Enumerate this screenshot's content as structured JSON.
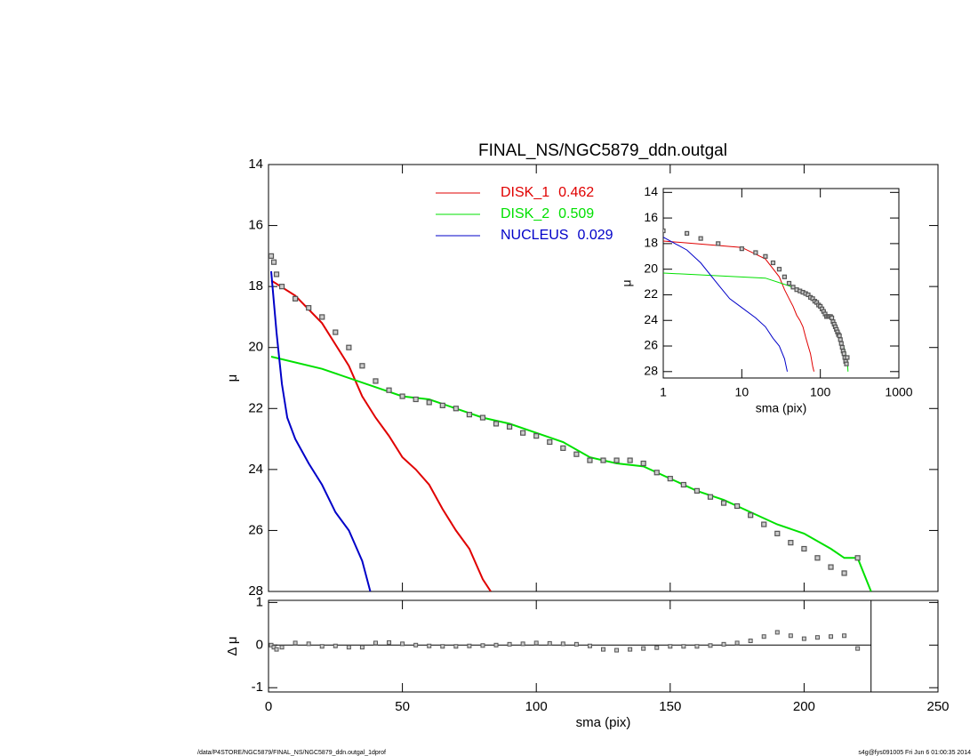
{
  "chart_data": [
    {
      "type": "line",
      "title": "FINAL_NS/NGC5879_ddn.outgal",
      "ylabel": "μ",
      "xlim": [
        0,
        250
      ],
      "xticks": [
        0,
        50,
        100,
        150,
        200,
        250
      ],
      "ylim": [
        14,
        28
      ],
      "yticks": [
        14,
        16,
        18,
        20,
        22,
        24,
        26,
        28
      ],
      "y_inverted": true,
      "series": [
        {
          "name": "DISK_1",
          "fraction": 0.462,
          "color": "#e00000",
          "x": [
            1,
            10,
            20,
            30,
            35,
            40,
            45,
            50,
            55,
            60,
            65,
            70,
            75,
            80,
            83
          ],
          "values": [
            17.8,
            18.3,
            19.2,
            20.6,
            21.6,
            22.3,
            22.9,
            23.6,
            24.0,
            24.5,
            25.3,
            26.0,
            26.6,
            27.6,
            28.0
          ]
        },
        {
          "name": "DISK_2",
          "fraction": 0.509,
          "color": "#00e000",
          "x": [
            1,
            20,
            40,
            50,
            60,
            70,
            80,
            90,
            100,
            110,
            120,
            125,
            130,
            140,
            150,
            160,
            170,
            180,
            190,
            200,
            210,
            215,
            220,
            225
          ],
          "values": [
            20.3,
            20.7,
            21.3,
            21.6,
            21.7,
            22.0,
            22.3,
            22.5,
            22.8,
            23.1,
            23.6,
            23.7,
            23.8,
            23.9,
            24.3,
            24.7,
            25.0,
            25.4,
            25.8,
            26.1,
            26.6,
            26.9,
            26.9,
            28.0
          ]
        },
        {
          "name": "NUCLEUS",
          "fraction": 0.029,
          "color": "#0000c8",
          "x": [
            1,
            2,
            3,
            5,
            7,
            10,
            15,
            20,
            25,
            30,
            35,
            38
          ],
          "values": [
            17.5,
            18.5,
            19.5,
            21.2,
            22.3,
            23.0,
            23.8,
            24.5,
            25.4,
            26.0,
            27.0,
            28.0
          ]
        }
      ],
      "data": {
        "color": "#555555",
        "x": [
          1,
          2,
          3,
          5,
          10,
          15,
          20,
          25,
          30,
          35,
          40,
          45,
          50,
          55,
          60,
          65,
          70,
          75,
          80,
          85,
          90,
          95,
          100,
          105,
          110,
          115,
          120,
          125,
          130,
          135,
          140,
          145,
          150,
          155,
          160,
          165,
          170,
          175,
          180,
          185,
          190,
          195,
          200,
          205,
          210,
          215,
          220
        ],
        "values": [
          17.0,
          17.2,
          17.6,
          18.0,
          18.4,
          18.7,
          19.0,
          19.5,
          20.0,
          20.6,
          21.1,
          21.4,
          21.6,
          21.7,
          21.8,
          21.9,
          22.0,
          22.2,
          22.3,
          22.5,
          22.6,
          22.8,
          22.9,
          23.1,
          23.3,
          23.5,
          23.7,
          23.7,
          23.7,
          23.7,
          23.8,
          24.1,
          24.3,
          24.5,
          24.7,
          24.9,
          25.1,
          25.2,
          25.5,
          25.8,
          26.1,
          26.4,
          26.6,
          26.9,
          27.2,
          27.4,
          26.9
        ]
      }
    },
    {
      "type": "scatter",
      "xlabel": "sma (pix)",
      "ylabel": "Δ μ",
      "xlim": [
        0,
        250
      ],
      "xticks": [
        0,
        50,
        100,
        150,
        200,
        250
      ],
      "ylim": [
        -1.1,
        1.05
      ],
      "yticks": [
        1,
        0,
        -1
      ],
      "vline": 225,
      "values": [
        0.0,
        -0.05,
        -0.1,
        -0.05,
        0.05,
        0.03,
        -0.03,
        -0.02,
        -0.05,
        -0.05,
        0.05,
        0.06,
        0.03,
        0.0,
        -0.02,
        -0.03,
        -0.03,
        -0.02,
        -0.01,
        0.0,
        0.02,
        0.03,
        0.05,
        0.04,
        0.03,
        0.02,
        -0.02,
        -0.1,
        -0.12,
        -0.1,
        -0.08,
        -0.06,
        -0.03,
        -0.03,
        -0.03,
        -0.01,
        0.02,
        0.05,
        0.1,
        0.2,
        0.3,
        0.22,
        0.15,
        0.18,
        0.2,
        0.22,
        -0.08
      ]
    },
    {
      "type": "line",
      "xlabel": "sma (pix)",
      "ylabel": "μ",
      "log_x": true,
      "xlim": [
        1,
        1000
      ],
      "xticks": [
        1,
        10,
        100,
        1000
      ],
      "ylim": [
        13.7,
        28.5
      ],
      "yticks": [
        14,
        16,
        18,
        20,
        22,
        24,
        26,
        28
      ],
      "y_inverted": true
    }
  ],
  "footer": {
    "left": "/data/P4STORE/NGC5879/FINAL_NS/NGC5879_ddn.outgal_1dprof",
    "right": "s4g@fys091005  Fri Jun  6 01:00:35 2014"
  }
}
